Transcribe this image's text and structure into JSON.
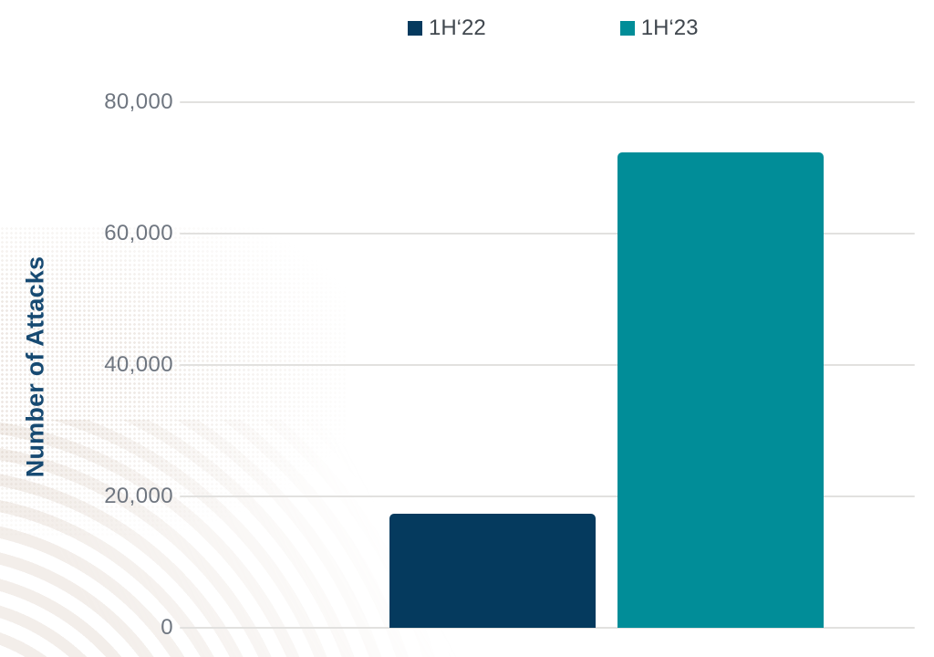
{
  "chart_data": {
    "type": "bar",
    "title": "",
    "xlabel": "",
    "ylabel": "Number of Attacks",
    "ylim": [
      0,
      80000
    ],
    "grid": "horizontal gridlines, light gray",
    "legend_position": "top-center",
    "yticks": [
      {
        "value": 0,
        "label": "0"
      },
      {
        "value": 20000,
        "label": "20,000"
      },
      {
        "value": 40000,
        "label": "40,000"
      },
      {
        "value": 60000,
        "label": "60,000"
      },
      {
        "value": 80000,
        "label": "80,000"
      }
    ],
    "series": [
      {
        "name": "1H‘22",
        "value": 17400,
        "color": "#053a5e"
      },
      {
        "name": "1H‘23",
        "value": 72400,
        "color": "#018d98"
      }
    ]
  },
  "colors": {
    "background": "#ffffff",
    "gridline": "#e2e1df",
    "tick_label": "#6f7680",
    "axis_title": "#174a72",
    "legend_text": "#40474e",
    "bar_1h22": "#053a5e",
    "bar_1h23": "#018d98"
  }
}
